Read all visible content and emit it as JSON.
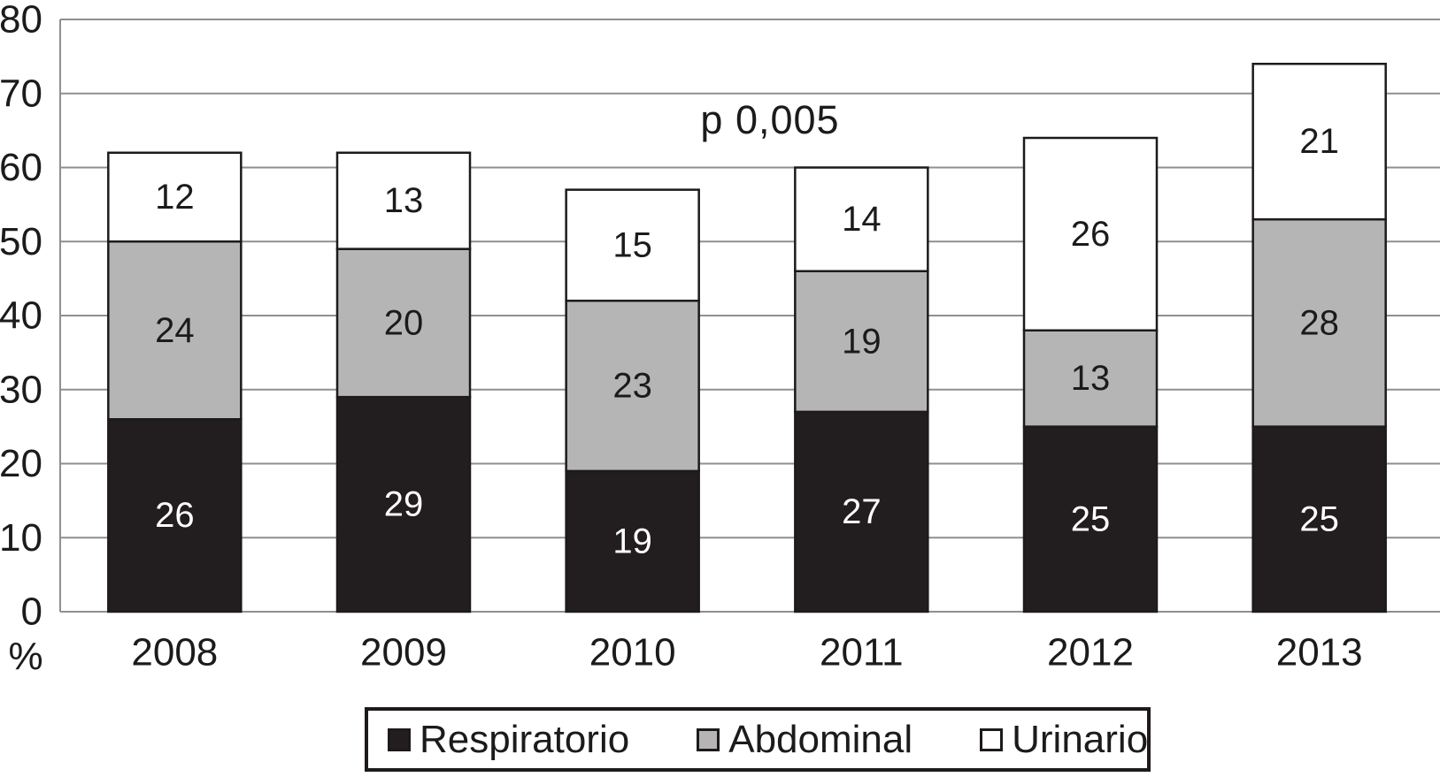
{
  "chart_data": {
    "type": "bar",
    "stacked": true,
    "title": "",
    "xlabel": "",
    "ylabel": "%",
    "ylim": [
      0,
      80
    ],
    "yticks": [
      0,
      10,
      20,
      30,
      40,
      50,
      60,
      70,
      80
    ],
    "grid": true,
    "legend_position": "bottom",
    "annotation": "p 0,005",
    "categories": [
      "2008",
      "2009",
      "2010",
      "2011",
      "2012",
      "2013"
    ],
    "series": [
      {
        "name": "Respiratorio",
        "color": "#221d1f",
        "label_color": "#ffffff",
        "values": [
          26,
          29,
          19,
          27,
          25,
          25
        ]
      },
      {
        "name": "Abdominal",
        "color": "#b5b5b6",
        "label_color": "#1b1b1b",
        "values": [
          24,
          20,
          23,
          19,
          13,
          28
        ]
      },
      {
        "name": "Urinario",
        "color": "#ffffff",
        "label_color": "#1b1b1b",
        "values": [
          12,
          13,
          15,
          14,
          26,
          21
        ]
      }
    ],
    "totals": [
      62,
      62,
      57,
      60,
      64,
      74
    ],
    "style": {
      "grid_color": "#8f8f8f",
      "text_color": "#1b1b1b",
      "bar_border_color": "#1e1a1b",
      "background": "#ffffff"
    }
  }
}
